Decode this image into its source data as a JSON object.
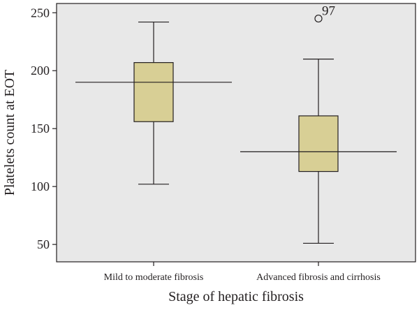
{
  "chart_data": {
    "type": "boxplot",
    "xlabel": "Stage of hepatic fibrosis",
    "ylabel": "Platelets count at EOT",
    "ylim": [
      35,
      258
    ],
    "yticks": [
      50,
      100,
      150,
      200,
      250
    ],
    "grid": false,
    "background": "#e8e8e8",
    "box_color": "#d8cf95",
    "categories": [
      "Mild to moderate fibrosis",
      "Advanced fibrosis and cirrhosis"
    ],
    "boxes": [
      {
        "category": "Mild to moderate fibrosis",
        "min": 102,
        "q1": 156,
        "median": 190,
        "q3": 207,
        "max": 242,
        "outliers": []
      },
      {
        "category": "Advanced fibrosis and cirrhosis",
        "min": 51,
        "q1": 113,
        "median": 130,
        "q3": 161,
        "max": 210,
        "outliers": [
          {
            "value": 245,
            "label": "97"
          }
        ]
      }
    ]
  }
}
